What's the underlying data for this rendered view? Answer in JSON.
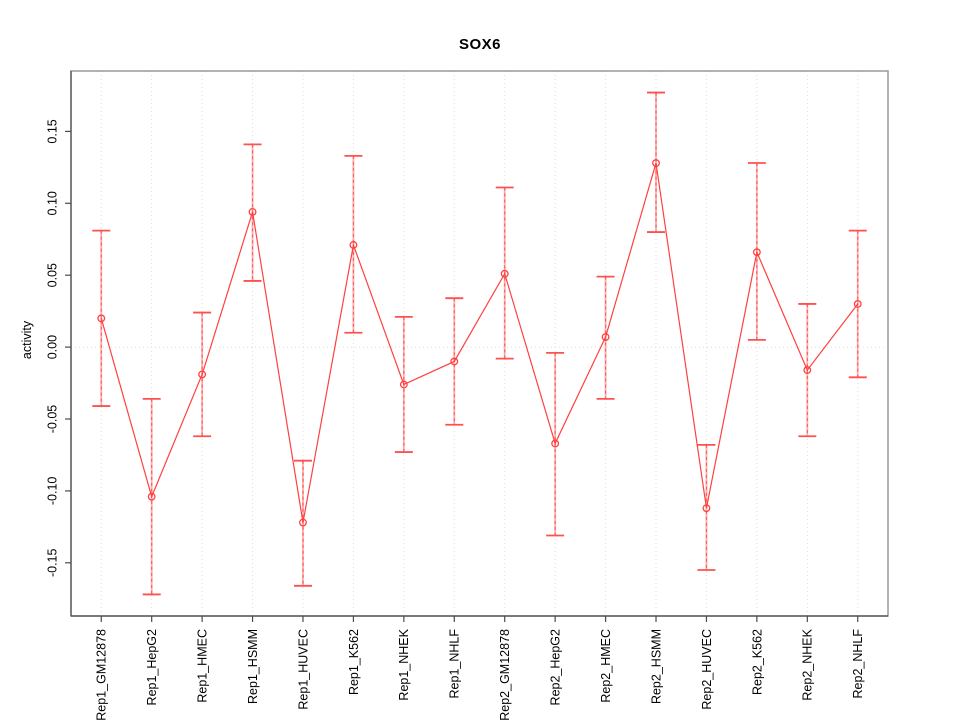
{
  "figure": {
    "title": "SOX6",
    "y_axis_title": "activity"
  },
  "chart_data": {
    "type": "line",
    "title": "SOX6",
    "xlabel": "",
    "ylabel": "activity",
    "legend": "none",
    "grid": {
      "vertical": "dotted line at each category",
      "horizontal": "dotted line at zero only"
    },
    "point_marker": "open-circle",
    "error_bars": true,
    "categories": [
      "Rep1_GM12878",
      "Rep1_HepG2",
      "Rep1_HMEC",
      "Rep1_HSMM",
      "Rep1_HUVEC",
      "Rep1_K562",
      "Rep1_NHEK",
      "Rep1_NHLF",
      "Rep2_GM12878",
      "Rep2_HepG2",
      "Rep2_HMEC",
      "Rep2_HSMM",
      "Rep2_HUVEC",
      "Rep2_K562",
      "Rep2_NHEK",
      "Rep2_NHLF"
    ],
    "series": [
      {
        "name": "SOX6 activity",
        "values": [
          0.02,
          -0.104,
          -0.019,
          0.094,
          -0.122,
          0.071,
          -0.026,
          -0.01,
          0.051,
          -0.067,
          0.007,
          0.128,
          -0.112,
          0.066,
          -0.016,
          0.03
        ],
        "error_lower": [
          -0.041,
          -0.172,
          -0.062,
          0.046,
          -0.166,
          0.01,
          -0.073,
          -0.054,
          -0.008,
          -0.131,
          -0.036,
          0.08,
          -0.155,
          0.005,
          -0.062,
          -0.021
        ],
        "error_upper": [
          0.081,
          -0.036,
          0.024,
          0.141,
          -0.079,
          0.133,
          0.021,
          0.034,
          0.111,
          -0.004,
          0.049,
          0.177,
          -0.068,
          0.128,
          0.03,
          0.081
        ]
      }
    ],
    "ytick_labels": [
      "0.15",
      "0.10",
      "0.05",
      "0.00",
      "-0.05",
      "-0.10",
      "-0.15"
    ],
    "ytick_values": [
      0.15,
      0.1,
      0.05,
      0.0,
      -0.05,
      -0.1,
      -0.15
    ],
    "ylim": [
      -0.187,
      0.192
    ],
    "colors": {
      "series_line": "#ff4040",
      "marker_stroke": "#ff4040",
      "errorbar_shaft": "#ffabab",
      "errorbar_dash": "#ff5c5c",
      "errorbar_cap": "#ff5050",
      "gridline": "#dcdcdc",
      "box_border": "#9a9a9a",
      "axis_line": "#4a4a4a",
      "text": "#000000"
    }
  }
}
